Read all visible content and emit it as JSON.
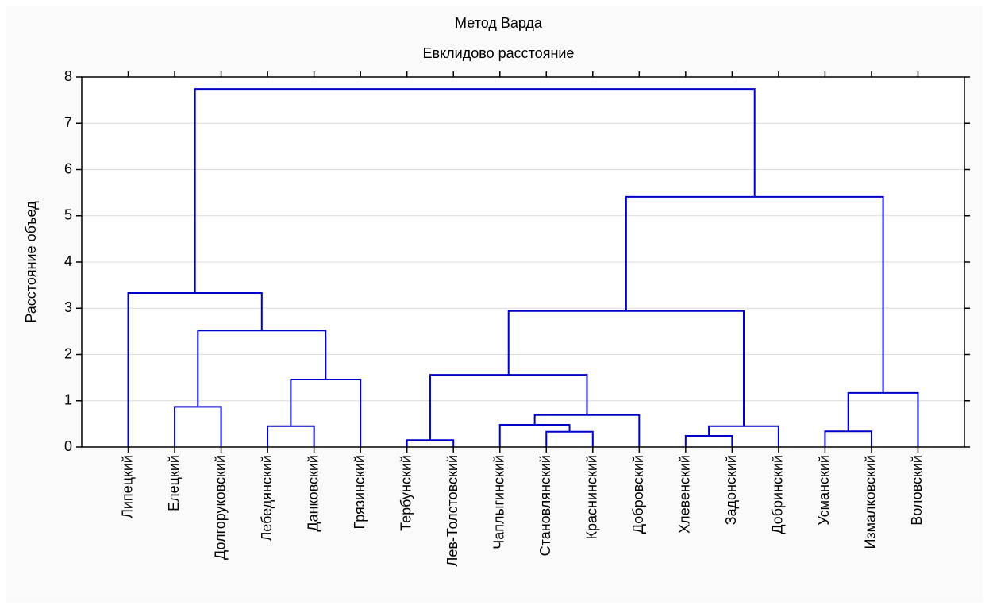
{
  "chart_data": {
    "type": "dendrogram",
    "title": "Метод Варда",
    "subtitle": "Евклидово расстояние",
    "y_label": "Расстояние объед",
    "categories": [
      "Липецкий",
      "Елецкий",
      "Долгоруковский",
      "Лебедянский",
      "Данковский",
      "Грязинский",
      "Тербунский",
      "Лев-Толстовский",
      "Чаплыгинский",
      "Становлянский",
      "Краснинский",
      "Добровский",
      "Хлевенский",
      "Задонский",
      "Добринский",
      "Усманский",
      "Измалковский",
      "Воловский"
    ],
    "linkage": [
      {
        "a": 1,
        "b": 2,
        "height": 0.87
      },
      {
        "a": 3,
        "b": 4,
        "height": 0.45
      },
      {
        "a": 19,
        "b": 5,
        "height": 1.46
      },
      {
        "a": 18,
        "b": 20,
        "height": 2.52
      },
      {
        "a": 0,
        "b": 21,
        "height": 3.33
      },
      {
        "a": 6,
        "b": 7,
        "height": 0.15
      },
      {
        "a": 9,
        "b": 10,
        "height": 0.33
      },
      {
        "a": 8,
        "b": 24,
        "height": 0.48
      },
      {
        "a": 25,
        "b": 11,
        "height": 0.69
      },
      {
        "a": 23,
        "b": 26,
        "height": 1.56
      },
      {
        "a": 12,
        "b": 13,
        "height": 0.24
      },
      {
        "a": 28,
        "b": 14,
        "height": 0.45
      },
      {
        "a": 27,
        "b": 29,
        "height": 2.94
      },
      {
        "a": 15,
        "b": 16,
        "height": 0.34
      },
      {
        "a": 31,
        "b": 17,
        "height": 1.17
      },
      {
        "a": 30,
        "b": 32,
        "height": 5.41
      },
      {
        "a": 22,
        "b": 33,
        "height": 7.74
      }
    ],
    "color": "#0000cc",
    "ylim": [
      0,
      8
    ],
    "yticks": [
      0,
      1,
      2,
      3,
      4,
      5,
      6,
      7,
      8
    ],
    "grid": true
  }
}
